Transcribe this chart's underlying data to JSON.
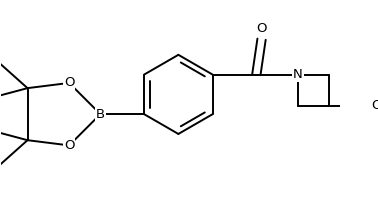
{
  "background": "#ffffff",
  "line_color": "#000000",
  "lw": 1.4,
  "fs": 9.5,
  "xlim": [
    -1.7,
    1.55
  ],
  "ylim": [
    -1.15,
    0.85
  ]
}
